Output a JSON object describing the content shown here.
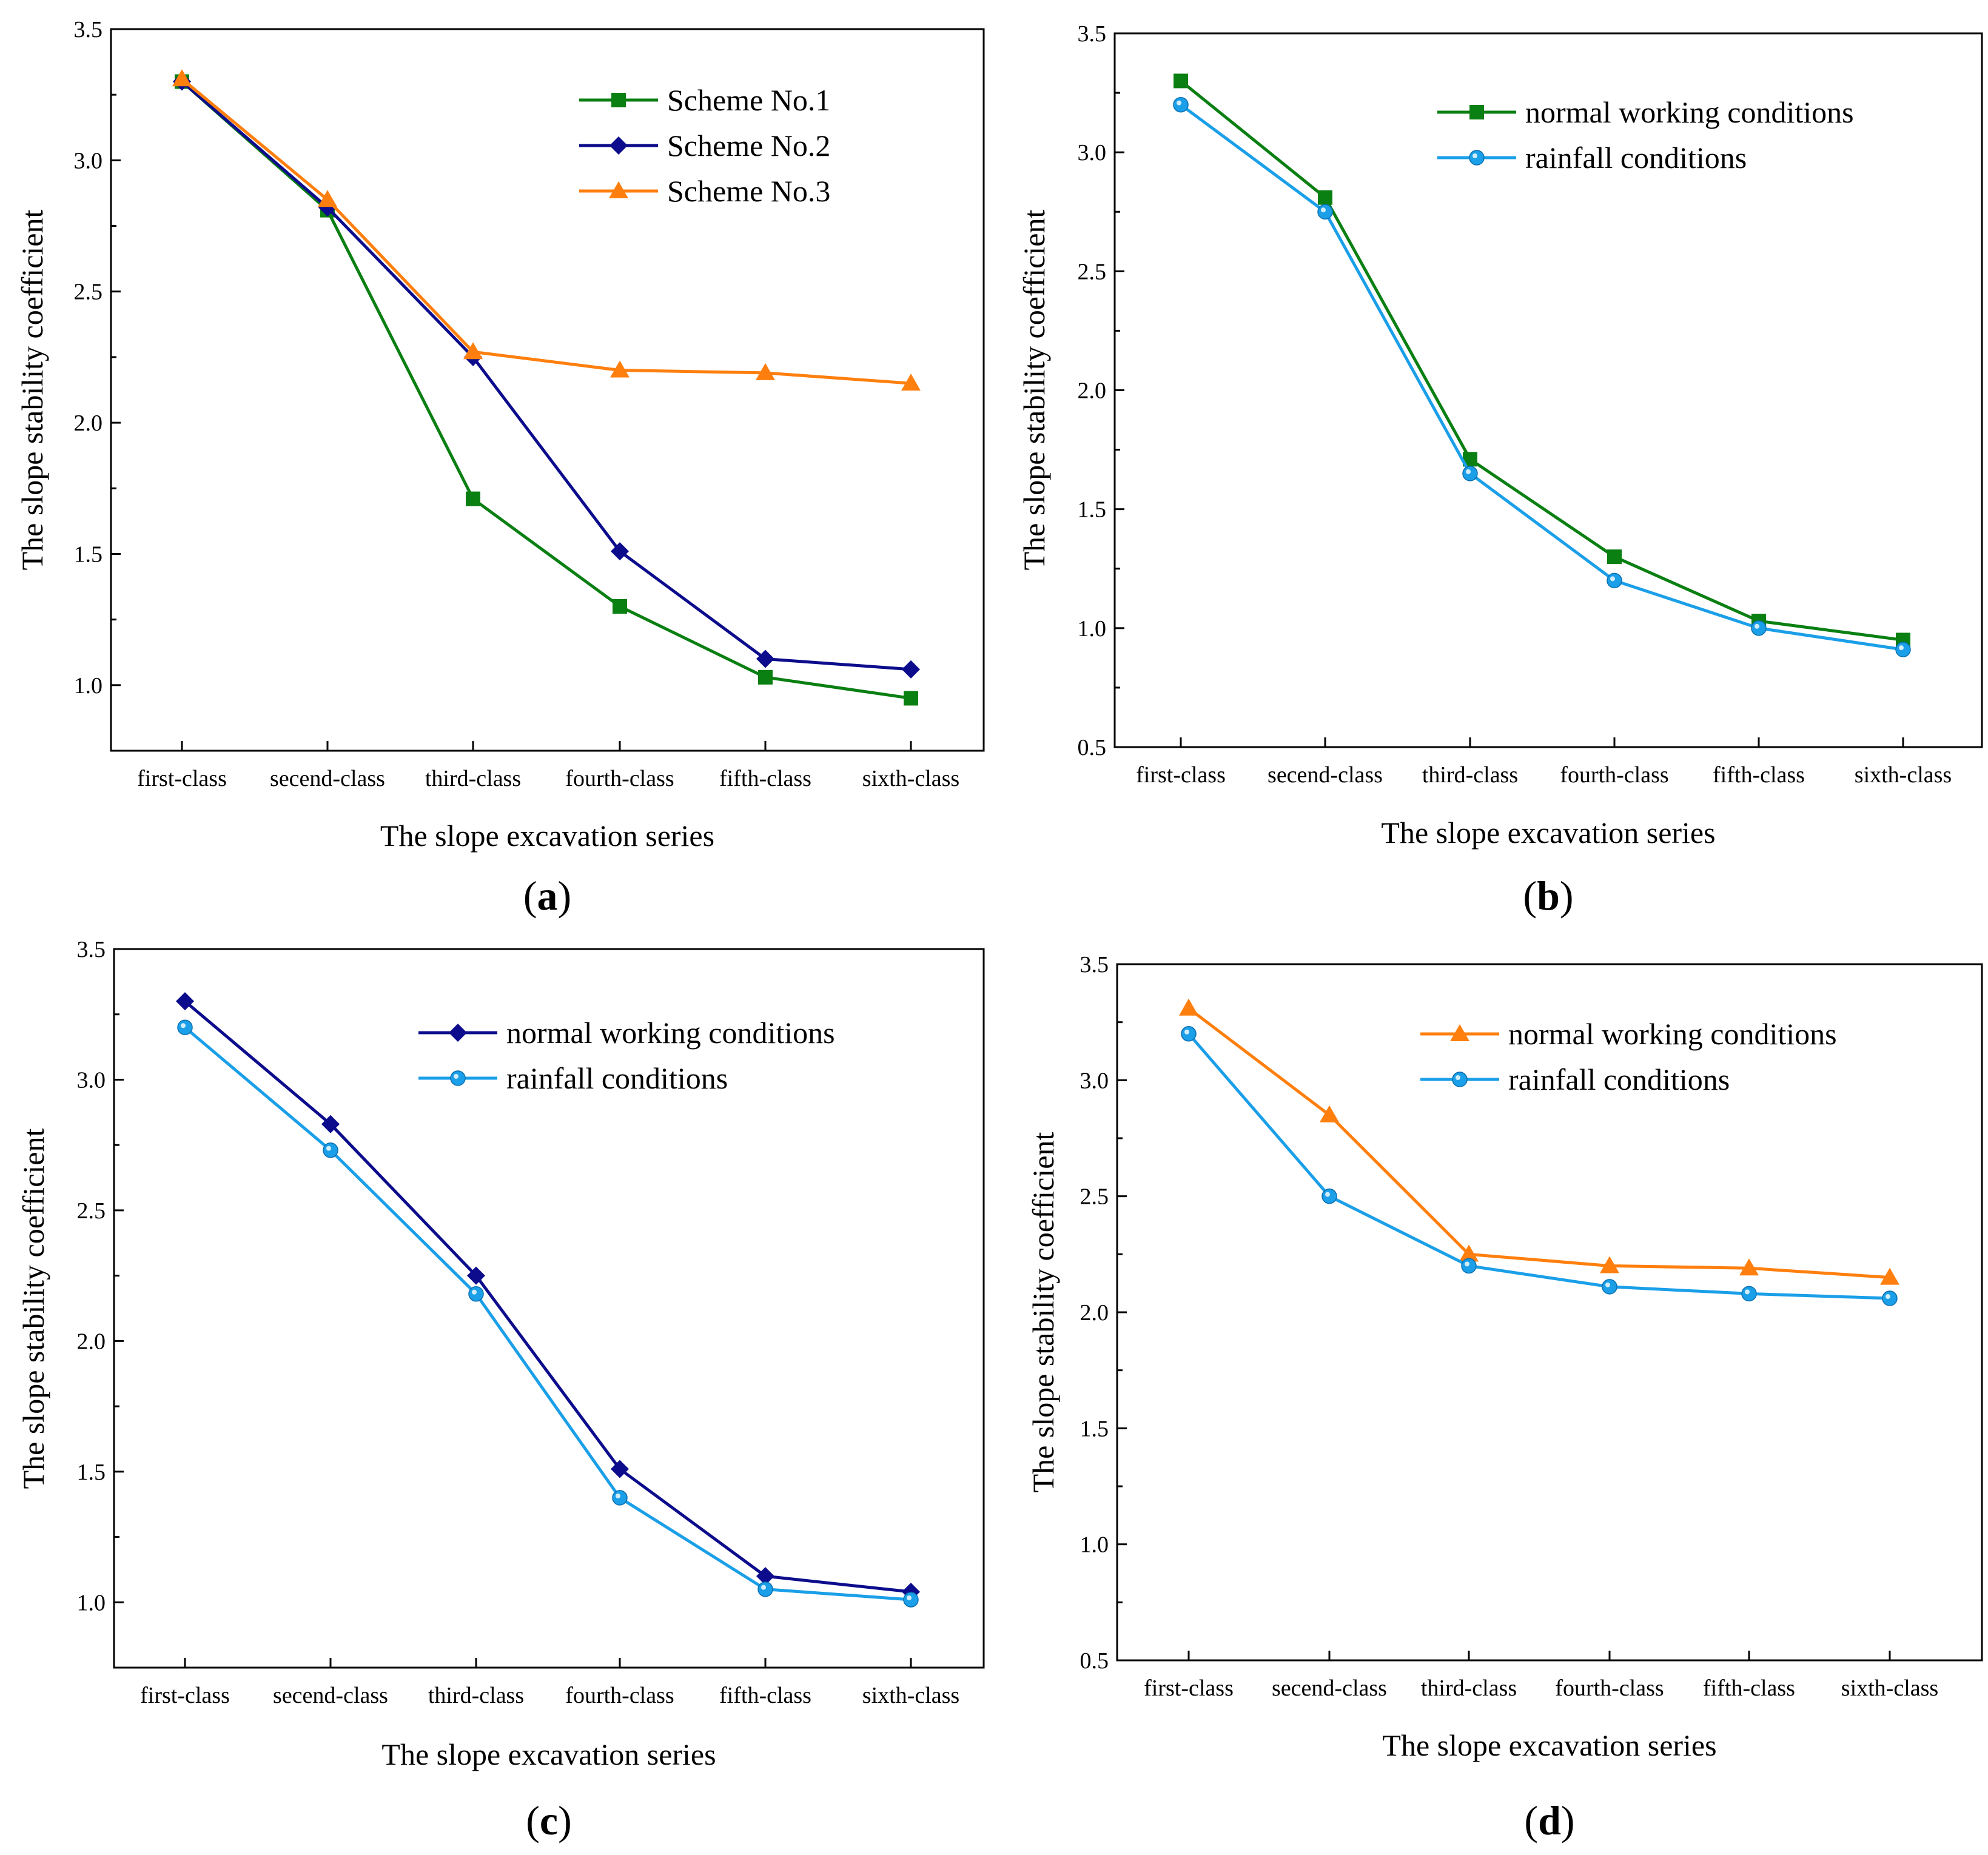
{
  "chart_data": [
    {
      "type": "line",
      "panel": "a",
      "panel_label": "a",
      "categories": [
        "first-class",
        "secend-class",
        "third-class",
        "fourth-class",
        "fifth-class",
        "sixth-class"
      ],
      "xlabel": "The slope excavation series",
      "ylabel": "The slope stability coefficient",
      "ylim": [
        0.75,
        3.5
      ],
      "yticks": [
        "1.0",
        "1.5",
        "2.0",
        "2.5",
        "3.0",
        "3.5"
      ],
      "legend_position": "top-right",
      "series": [
        {
          "name": "Scheme No.1",
          "color": "#0a7f12",
          "marker": "square",
          "values": [
            3.3,
            2.81,
            1.71,
            1.3,
            1.03,
            0.95
          ]
        },
        {
          "name": "Scheme No.2",
          "color": "#0c0c8c",
          "marker": "diamond",
          "values": [
            3.3,
            2.82,
            2.25,
            1.51,
            1.1,
            1.06
          ]
        },
        {
          "name": "Scheme No.3",
          "color": "#ff7f0e",
          "marker": "triangle",
          "values": [
            3.31,
            2.85,
            2.27,
            2.2,
            2.19,
            2.15
          ]
        }
      ]
    },
    {
      "type": "line",
      "panel": "b",
      "panel_label": "b",
      "categories": [
        "first-class",
        "secend-class",
        "third-class",
        "fourth-class",
        "fifth-class",
        "sixth-class"
      ],
      "xlabel": "The slope excavation series",
      "ylabel": "The slope stability coefficient",
      "ylim": [
        0.5,
        3.5
      ],
      "yticks": [
        "0.5",
        "1.0",
        "1.5",
        "2.0",
        "2.5",
        "3.0",
        "3.5"
      ],
      "legend_position": "top-right",
      "series": [
        {
          "name": "normal working conditions",
          "color": "#0a7f12",
          "marker": "square",
          "values": [
            3.3,
            2.81,
            1.71,
            1.3,
            1.03,
            0.95
          ]
        },
        {
          "name": "rainfall conditions",
          "color": "#1a9fe8",
          "marker": "circle",
          "values": [
            3.2,
            2.75,
            1.65,
            1.2,
            1.0,
            0.91
          ]
        }
      ]
    },
    {
      "type": "line",
      "panel": "c",
      "panel_label": "c",
      "categories": [
        "first-class",
        "secend-class",
        "third-class",
        "fourth-class",
        "fifth-class",
        "sixth-class"
      ],
      "xlabel": "The slope excavation series",
      "ylabel": "The slope stability coefficient",
      "ylim": [
        0.75,
        3.5
      ],
      "yticks": [
        "1.0",
        "1.5",
        "2.0",
        "2.5",
        "3.0",
        "3.5"
      ],
      "legend_position": "top-right",
      "series": [
        {
          "name": "normal working conditions",
          "color": "#0c0c8c",
          "marker": "diamond",
          "values": [
            3.3,
            2.83,
            2.25,
            1.51,
            1.1,
            1.04
          ]
        },
        {
          "name": "rainfall conditions",
          "color": "#1a9fe8",
          "marker": "circle",
          "values": [
            3.2,
            2.73,
            2.18,
            1.4,
            1.05,
            1.01
          ]
        }
      ]
    },
    {
      "type": "line",
      "panel": "d",
      "panel_label": "d",
      "categories": [
        "first-class",
        "secend-class",
        "third-class",
        "fourth-class",
        "fifth-class",
        "sixth-class"
      ],
      "xlabel": "The slope excavation series",
      "ylabel": "The slope stability coefficient",
      "ylim": [
        0.5,
        3.5
      ],
      "yticks": [
        "0.5",
        "1.0",
        "1.5",
        "2.0",
        "2.5",
        "3.0",
        "3.5"
      ],
      "legend_position": "top-right",
      "series": [
        {
          "name": "normal working conditions",
          "color": "#ff7f0e",
          "marker": "triangle",
          "values": [
            3.31,
            2.85,
            2.25,
            2.2,
            2.19,
            2.15
          ]
        },
        {
          "name": "rainfall conditions",
          "color": "#1a9fe8",
          "marker": "circle",
          "values": [
            3.2,
            2.5,
            2.2,
            2.11,
            2.08,
            2.06
          ]
        }
      ]
    }
  ]
}
